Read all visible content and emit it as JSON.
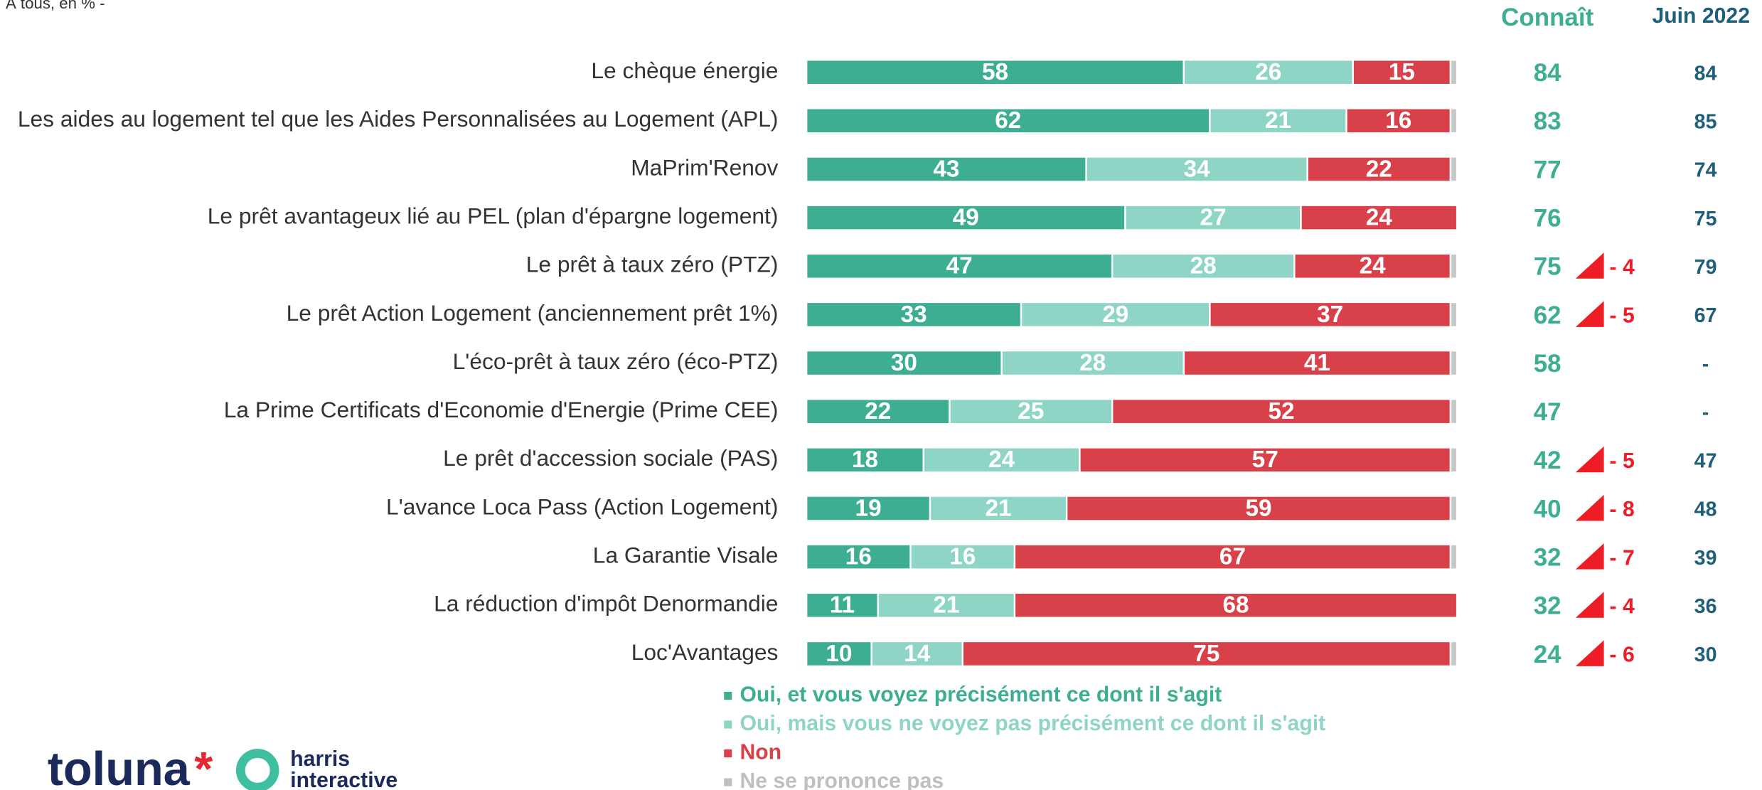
{
  "chart_data": {
    "type": "bar",
    "orientation": "horizontal",
    "stacked": true,
    "subtitle": "À tous, en % -",
    "categories": [
      "Le chèque énergie",
      "Les aides au logement tel que les Aides Personnalisées au Logement (APL)",
      "MaPrim'Renov",
      "Le prêt avantageux lié au PEL (plan d'épargne logement)",
      "Le prêt à taux zéro (PTZ)",
      "Le prêt Action Logement (anciennement prêt 1%)",
      "L'éco-prêt à taux zéro (éco-PTZ)",
      "La Prime Certificats d'Economie d'Energie (Prime CEE)",
      "Le prêt d'accession sociale (PAS)",
      "L'avance Loca Pass (Action Logement)",
      "La Garantie Visale",
      "La réduction d'impôt Denormandie",
      "Loc'Avantages"
    ],
    "series": [
      {
        "name": "Oui, et vous voyez précisément ce dont il s'agit",
        "color": "#3dae92",
        "label_color": "#ffffff",
        "values": [
          58,
          62,
          43,
          49,
          47,
          33,
          30,
          22,
          18,
          19,
          16,
          11,
          10
        ]
      },
      {
        "name": "Oui, mais vous ne voyez pas précisément ce dont il s'agit",
        "color": "#8fd5c6",
        "label_color": "#ffffff",
        "values": [
          26,
          21,
          34,
          27,
          28,
          29,
          28,
          25,
          24,
          21,
          16,
          21,
          14
        ]
      },
      {
        "name": "Non",
        "color": "#d9414a",
        "label_color": "#ffffff",
        "values": [
          15,
          16,
          22,
          24,
          24,
          37,
          41,
          52,
          57,
          59,
          67,
          68,
          75
        ]
      },
      {
        "name": "Ne se prononce pas",
        "color": "#c8c8c8",
        "values": [
          1,
          1,
          1,
          0,
          1,
          1,
          1,
          1,
          1,
          1,
          1,
          0,
          1
        ]
      }
    ],
    "xlim": [
      0,
      100
    ],
    "legend": "bottom"
  },
  "table": {
    "headers": [
      "Connaît",
      "Juin 2022"
    ],
    "connait": [
      84,
      83,
      77,
      76,
      75,
      62,
      58,
      47,
      42,
      40,
      32,
      32,
      24
    ],
    "juin_2022": [
      84,
      85,
      74,
      75,
      79,
      67,
      "-",
      "-",
      47,
      48,
      39,
      36,
      30
    ],
    "evolution": [
      null,
      null,
      null,
      null,
      "- 4",
      "- 5",
      null,
      null,
      "- 5",
      "- 8",
      "- 7",
      "- 4",
      "- 6"
    ]
  },
  "logo": {
    "brand": "toluna",
    "star": "*",
    "partner_line1": "harris",
    "partner_line2": "interactive"
  }
}
